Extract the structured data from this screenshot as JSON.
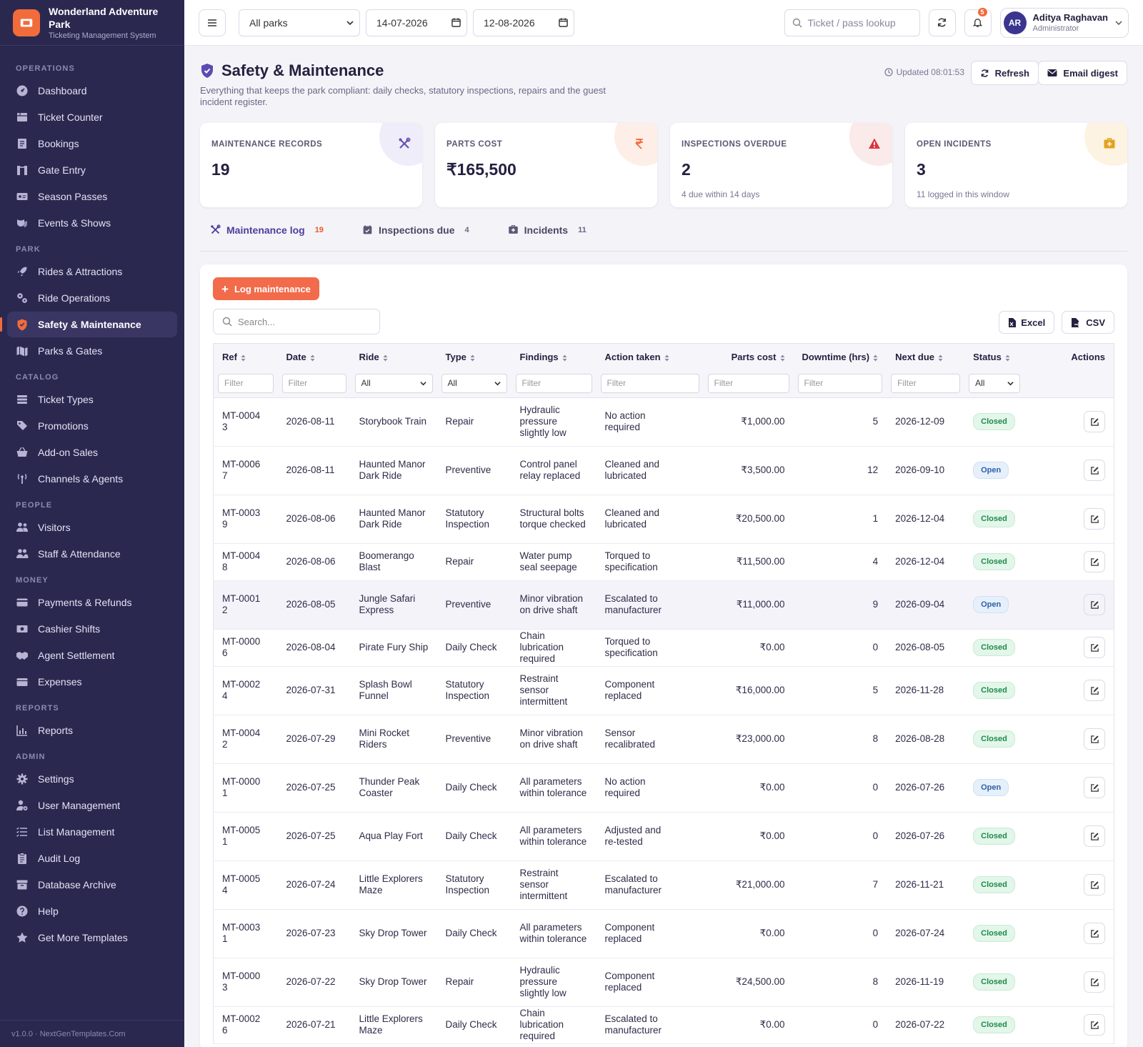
{
  "brand": {
    "name": "Wonderland Adventure Park",
    "subtitle": "Ticketing Management System"
  },
  "nav": [
    {
      "section": "OPERATIONS",
      "items": [
        {
          "label": "Dashboard",
          "icon": "dashboard-icon"
        },
        {
          "label": "Ticket Counter",
          "icon": "ticket-counter-icon"
        },
        {
          "label": "Bookings",
          "icon": "bookings-icon"
        },
        {
          "label": "Gate Entry",
          "icon": "gate-entry-icon"
        },
        {
          "label": "Season Passes",
          "icon": "season-pass-icon"
        },
        {
          "label": "Events & Shows",
          "icon": "events-icon"
        }
      ]
    },
    {
      "section": "PARK",
      "items": [
        {
          "label": "Rides & Attractions",
          "icon": "rocket-icon"
        },
        {
          "label": "Ride Operations",
          "icon": "gears-icon"
        },
        {
          "label": "Safety & Maintenance",
          "icon": "shield-icon",
          "active": true
        },
        {
          "label": "Parks & Gates",
          "icon": "map-icon"
        }
      ]
    },
    {
      "section": "CATALOG",
      "items": [
        {
          "label": "Ticket Types",
          "icon": "ticket-types-icon"
        },
        {
          "label": "Promotions",
          "icon": "tags-icon"
        },
        {
          "label": "Add-on Sales",
          "icon": "basket-icon"
        },
        {
          "label": "Channels & Agents",
          "icon": "antenna-icon"
        }
      ]
    },
    {
      "section": "PEOPLE",
      "items": [
        {
          "label": "Visitors",
          "icon": "visitors-icon"
        },
        {
          "label": "Staff & Attendance",
          "icon": "staff-icon"
        }
      ]
    },
    {
      "section": "MONEY",
      "items": [
        {
          "label": "Payments & Refunds",
          "icon": "card-icon"
        },
        {
          "label": "Cashier Shifts",
          "icon": "cash-icon"
        },
        {
          "label": "Agent Settlement",
          "icon": "handshake-icon"
        },
        {
          "label": "Expenses",
          "icon": "wallet-icon"
        }
      ]
    },
    {
      "section": "REPORTS",
      "items": [
        {
          "label": "Reports",
          "icon": "chart-icon"
        }
      ]
    },
    {
      "section": "ADMIN",
      "items": [
        {
          "label": "Settings",
          "icon": "gear-icon"
        },
        {
          "label": "User Management",
          "icon": "user-gear-icon"
        },
        {
          "label": "List Management",
          "icon": "list-icon"
        },
        {
          "label": "Audit Log",
          "icon": "clipboard-icon"
        },
        {
          "label": "Database Archive",
          "icon": "archive-icon"
        },
        {
          "label": "Help",
          "icon": "help-icon"
        },
        {
          "label": "Get More Templates",
          "icon": "star-icon"
        }
      ]
    }
  ],
  "footer": "v1.0.0 · NextGenTemplates.Com",
  "topbar": {
    "park_select": "All parks",
    "date_from": "14-07-2026",
    "date_to": "12-08-2026",
    "lookup_placeholder": "Ticket / pass lookup",
    "notif_count": "5",
    "user": {
      "initials": "AR",
      "name": "Aditya Raghavan",
      "role": "Administrator"
    }
  },
  "page": {
    "title": "Safety & Maintenance",
    "description": "Everything that keeps the park compliant: daily checks, statutory inspections, repairs and the guest incident register.",
    "updated": "Updated 08:01:53",
    "refresh_label": "Refresh",
    "email_label": "Email digest"
  },
  "cards": [
    {
      "label": "MAINTENANCE RECORDS",
      "value": "19",
      "sub": "",
      "icon": "tools-icon",
      "color": "#6a4fb3",
      "bg": "#efedf9"
    },
    {
      "label": "PARTS COST",
      "value": "₹165,500",
      "sub": "",
      "icon": "rupee-icon",
      "color": "#f26b3a",
      "bg": "#fdeee8"
    },
    {
      "label": "INSPECTIONS OVERDUE",
      "value": "2",
      "sub": "4 due within 14 days",
      "icon": "warning-icon",
      "color": "#d9363e",
      "bg": "#fbeaea"
    },
    {
      "label": "OPEN INCIDENTS",
      "value": "3",
      "sub": "11 logged in this window",
      "icon": "first-aid-icon",
      "color": "#e6a21c",
      "bg": "#fdf3e2"
    }
  ],
  "tabs": [
    {
      "label": "Maintenance log",
      "count": "19",
      "icon": "tools-icon",
      "active": true
    },
    {
      "label": "Inspections due",
      "count": "4",
      "icon": "calendar-check-icon"
    },
    {
      "label": "Incidents",
      "count": "11",
      "icon": "first-aid-icon"
    }
  ],
  "table": {
    "add_label": "Log maintenance",
    "search_placeholder": "Search...",
    "excel_label": "Excel",
    "csv_label": "CSV",
    "filter_placeholder": "Filter",
    "filter_all": "All",
    "columns": [
      "Ref",
      "Date",
      "Ride",
      "Type",
      "Findings",
      "Action taken",
      "Parts cost",
      "Downtime (hrs)",
      "Next due",
      "Status",
      "Actions"
    ],
    "rows": [
      {
        "ref": "MT-00043",
        "date": "2026-08-11",
        "ride": "Storybook Train",
        "type": "Repair",
        "findings": "Hydraulic pressure slightly low",
        "action": "No action required",
        "cost": "₹1,000.00",
        "downtime": "5",
        "next": "2026-12-09",
        "status": "Closed"
      },
      {
        "ref": "MT-00067",
        "date": "2026-08-11",
        "ride": "Haunted Manor Dark Ride",
        "type": "Preventive",
        "findings": "Control panel relay replaced",
        "action": "Cleaned and lubricated",
        "cost": "₹3,500.00",
        "downtime": "12",
        "next": "2026-09-10",
        "status": "Open"
      },
      {
        "ref": "MT-00039",
        "date": "2026-08-06",
        "ride": "Haunted Manor Dark Ride",
        "type": "Statutory Inspection",
        "findings": "Structural bolts torque checked",
        "action": "Cleaned and lubricated",
        "cost": "₹20,500.00",
        "downtime": "1",
        "next": "2026-12-04",
        "status": "Closed"
      },
      {
        "ref": "MT-00048",
        "date": "2026-08-06",
        "ride": "Boomerango Blast",
        "type": "Repair",
        "findings": "Water pump seal seepage",
        "action": "Torqued to specification",
        "cost": "₹11,500.00",
        "downtime": "4",
        "next": "2026-12-04",
        "status": "Closed"
      },
      {
        "ref": "MT-00012",
        "date": "2026-08-05",
        "ride": "Jungle Safari Express",
        "type": "Preventive",
        "findings": "Minor vibration on drive shaft",
        "action": "Escalated to manufacturer",
        "cost": "₹11,000.00",
        "downtime": "9",
        "next": "2026-09-04",
        "status": "Open"
      },
      {
        "ref": "MT-00006",
        "date": "2026-08-04",
        "ride": "Pirate Fury Ship",
        "type": "Daily Check",
        "findings": "Chain lubrication required",
        "action": "Torqued to specification",
        "cost": "₹0.00",
        "downtime": "0",
        "next": "2026-08-05",
        "status": "Closed"
      },
      {
        "ref": "MT-00024",
        "date": "2026-07-31",
        "ride": "Splash Bowl Funnel",
        "type": "Statutory Inspection",
        "findings": "Restraint sensor intermittent",
        "action": "Component replaced",
        "cost": "₹16,000.00",
        "downtime": "5",
        "next": "2026-11-28",
        "status": "Closed"
      },
      {
        "ref": "MT-00042",
        "date": "2026-07-29",
        "ride": "Mini Rocket Riders",
        "type": "Preventive",
        "findings": "Minor vibration on drive shaft",
        "action": "Sensor recalibrated",
        "cost": "₹23,000.00",
        "downtime": "8",
        "next": "2026-08-28",
        "status": "Closed"
      },
      {
        "ref": "MT-00001",
        "date": "2026-07-25",
        "ride": "Thunder Peak Coaster",
        "type": "Daily Check",
        "findings": "All parameters within tolerance",
        "action": "No action required",
        "cost": "₹0.00",
        "downtime": "0",
        "next": "2026-07-26",
        "status": "Open"
      },
      {
        "ref": "MT-00051",
        "date": "2026-07-25",
        "ride": "Aqua Play Fort",
        "type": "Daily Check",
        "findings": "All parameters within tolerance",
        "action": "Adjusted and re-tested",
        "cost": "₹0.00",
        "downtime": "0",
        "next": "2026-07-26",
        "status": "Closed"
      },
      {
        "ref": "MT-00054",
        "date": "2026-07-24",
        "ride": "Little Explorers Maze",
        "type": "Statutory Inspection",
        "findings": "Restraint sensor intermittent",
        "action": "Escalated to manufacturer",
        "cost": "₹21,000.00",
        "downtime": "7",
        "next": "2026-11-21",
        "status": "Closed"
      },
      {
        "ref": "MT-00031",
        "date": "2026-07-23",
        "ride": "Sky Drop Tower",
        "type": "Daily Check",
        "findings": "All parameters within tolerance",
        "action": "Component replaced",
        "cost": "₹0.00",
        "downtime": "0",
        "next": "2026-07-24",
        "status": "Closed"
      },
      {
        "ref": "MT-00003",
        "date": "2026-07-22",
        "ride": "Sky Drop Tower",
        "type": "Repair",
        "findings": "Hydraulic pressure slightly low",
        "action": "Component replaced",
        "cost": "₹24,500.00",
        "downtime": "8",
        "next": "2026-11-19",
        "status": "Closed"
      },
      {
        "ref": "MT-00026",
        "date": "2026-07-21",
        "ride": "Little Explorers Maze",
        "type": "Daily Check",
        "findings": "Chain lubrication required",
        "action": "Escalated to manufacturer",
        "cost": "₹0.00",
        "downtime": "0",
        "next": "2026-07-22",
        "status": "Closed"
      }
    ]
  }
}
